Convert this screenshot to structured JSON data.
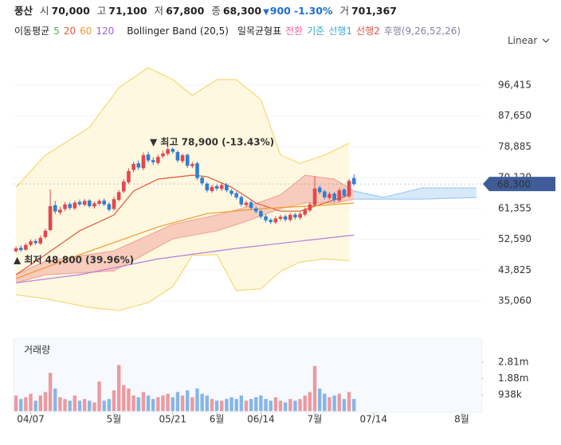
{
  "header": {
    "name": "풍산",
    "fields": [
      {
        "label": "시",
        "value": "70,000"
      },
      {
        "label": "고",
        "value": "71,100"
      },
      {
        "label": "저",
        "value": "67,800"
      },
      {
        "label": "종",
        "value": "68,300"
      }
    ],
    "change": {
      "arrow": "▼",
      "amount": "900",
      "percent": "-1.30%"
    },
    "volume": {
      "label": "거",
      "value": "701,367"
    }
  },
  "legend": {
    "ma_title": "이동평균",
    "ma": [
      {
        "name": "5",
        "color": "#4caf50"
      },
      {
        "name": "20",
        "color": "#e0563b"
      },
      {
        "name": "60",
        "color": "#ef9a2c"
      },
      {
        "name": "120",
        "color": "#a05fd0"
      }
    ],
    "bollinger": "Bollinger Band (20,5)",
    "ichimoku_title": "일목균형표",
    "ichimoku": [
      {
        "name": "전환",
        "color": "#ec6aa0"
      },
      {
        "name": "기준",
        "color": "#2aa8b8"
      },
      {
        "name": "선행1",
        "color": "#3fa7d6"
      },
      {
        "name": "선행2",
        "color": "#e0524a"
      },
      {
        "name": "후행(9,26,52,26)",
        "color": "#8a7fa0"
      }
    ]
  },
  "scale_mode": "Linear",
  "chart_data": {
    "type": "candlestick",
    "up_color": "#e2474e",
    "down_color": "#2f7fd2",
    "xlim": [
      -0.5,
      95
    ],
    "xticks": [
      {
        "value": 3,
        "label": "04/07"
      },
      {
        "value": 20,
        "label": "5월"
      },
      {
        "value": 32,
        "label": "05/21"
      },
      {
        "value": 41,
        "label": "6월"
      },
      {
        "value": 50,
        "label": "06/14"
      },
      {
        "value": 61,
        "label": "7월"
      },
      {
        "value": 73,
        "label": "07/14"
      },
      {
        "value": 91,
        "label": "8월"
      }
    ],
    "ylim": [
      27812,
      103663
    ],
    "yticks": [
      {
        "value": 96415,
        "label": "96,415"
      },
      {
        "value": 87650,
        "label": "87,650"
      },
      {
        "value": 78885,
        "label": "78,885"
      },
      {
        "value": 70120,
        "label": "70,120"
      },
      {
        "value": 61355,
        "label": "61,355"
      },
      {
        "value": 52590,
        "label": "52,590"
      },
      {
        "value": 43825,
        "label": "43,825"
      },
      {
        "value": 35060,
        "label": "35,060"
      }
    ],
    "open": [
      49200,
      50200,
      49600,
      51000,
      52100,
      51400,
      53200,
      55200,
      62300,
      60200,
      61200,
      62600,
      61400,
      63200,
      62400,
      63600,
      61900,
      62700,
      63600,
      62600,
      61200,
      63800,
      66200,
      68800,
      72300,
      74200,
      72800,
      76700,
      75100,
      74300,
      76200,
      76900,
      78300,
      77400,
      74800,
      76600,
      73400,
      74200,
      70100,
      68400,
      66300,
      67700,
      66900,
      68100,
      66400,
      65700,
      64600,
      62300,
      63100,
      61400,
      60600,
      59100,
      58100,
      57400,
      58400,
      59100,
      58100,
      59600,
      58700,
      59600,
      60800,
      62300,
      67300,
      66200,
      64300,
      65600,
      63600,
      66700,
      64800,
      70000
    ],
    "high": [
      50600,
      50900,
      51500,
      52600,
      52700,
      53600,
      55700,
      66800,
      63500,
      61800,
      63200,
      63100,
      63600,
      63900,
      64100,
      64000,
      63300,
      64000,
      64200,
      63100,
      64700,
      66600,
      69700,
      72800,
      74700,
      75000,
      77300,
      77500,
      75900,
      76700,
      77800,
      78900,
      78700,
      77900,
      77000,
      77000,
      74600,
      74700,
      70700,
      68900,
      68100,
      68200,
      68600,
      68600,
      66900,
      66200,
      65100,
      63600,
      63600,
      61900,
      61100,
      59600,
      58600,
      59100,
      59600,
      59600,
      60100,
      60100,
      60400,
      61600,
      63100,
      70500,
      67900,
      66700,
      66100,
      66100,
      67100,
      67200,
      69800,
      71100
    ],
    "low": [
      48800,
      49000,
      49300,
      50500,
      51000,
      51000,
      52800,
      55000,
      59800,
      59500,
      60600,
      60900,
      60900,
      62000,
      61900,
      61500,
      61300,
      62200,
      62000,
      60500,
      60800,
      63300,
      65700,
      68300,
      71600,
      72300,
      72200,
      74400,
      73800,
      73800,
      75600,
      76300,
      76900,
      74400,
      74200,
      72900,
      72800,
      69400,
      67900,
      65900,
      65800,
      66400,
      66300,
      65900,
      64900,
      63900,
      61900,
      61800,
      60900,
      59900,
      58400,
      57400,
      56900,
      56900,
      57800,
      57600,
      57600,
      58200,
      58200,
      59100,
      60300,
      61800,
      65400,
      63900,
      63800,
      63200,
      63100,
      64400,
      64300,
      67800
    ],
    "close": [
      50000,
      49500,
      51000,
      52000,
      51500,
      53000,
      55000,
      62000,
      60500,
      61000,
      62500,
      61500,
      63000,
      62500,
      63500,
      62000,
      62800,
      63500,
      62500,
      61000,
      64000,
      66000,
      69000,
      72000,
      74000,
      73000,
      76500,
      75000,
      74500,
      76000,
      77000,
      78200,
      77500,
      75000,
      76500,
      73500,
      74000,
      70000,
      68500,
      66500,
      67500,
      67000,
      68000,
      66500,
      65500,
      64500,
      62500,
      63000,
      61500,
      60500,
      59000,
      58000,
      57500,
      58500,
      59000,
      58200,
      59500,
      58800,
      59800,
      61000,
      62500,
      67000,
      66000,
      64500,
      65500,
      63800,
      66500,
      65000,
      69200,
      68300
    ],
    "bands": [
      {
        "color": "#f6d873",
        "fill": "#fff5d6",
        "x": [
          0,
          6,
          15,
          21,
          27,
          32,
          36,
          41,
          45,
          50,
          54,
          58,
          63,
          68
        ],
        "upper": [
          67400,
          76500,
          84400,
          95700,
          101400,
          98000,
          93500,
          98000,
          98000,
          92300,
          76500,
          74200,
          76500,
          79900
        ],
        "lower": [
          36800,
          35700,
          33200,
          32300,
          34600,
          39100,
          48000,
          48200,
          38000,
          38500,
          43500,
          46100,
          47000,
          46500
        ]
      },
      {
        "color": "#f0a89c",
        "fill": "#f6bdb1",
        "x": [
          0,
          6,
          20,
          32,
          41,
          46,
          54,
          59,
          65,
          69
        ],
        "upper": [
          42500,
          46400,
          49300,
          56800,
          59500,
          61300,
          65200,
          70800,
          69700,
          66300
        ],
        "lower": [
          40200,
          42500,
          43600,
          52700,
          55000,
          57200,
          61300,
          62900,
          62900,
          64000
        ]
      },
      {
        "color": "#9cc9ee",
        "fill": "#c9e1f5",
        "x": [
          69,
          75,
          83,
          94
        ],
        "upper": [
          66300,
          64500,
          67200,
          67200
        ],
        "lower": [
          64000,
          64000,
          64000,
          64500
        ]
      }
    ],
    "lines": [
      {
        "color": "#e0563b",
        "x": [
          0,
          6,
          13,
          20,
          24,
          29,
          36,
          39,
          44,
          49,
          54,
          58,
          63,
          68
        ],
        "values": [
          42500,
          48200,
          55000,
          59500,
          66300,
          69700,
          70800,
          70400,
          67400,
          62900,
          60600,
          60600,
          62900,
          65200
        ]
      },
      {
        "color": "#ef9a2c",
        "x": [
          0,
          13,
          29,
          39,
          50,
          62,
          69
        ],
        "values": [
          41400,
          48200,
          56100,
          59900,
          61300,
          62200,
          62900
        ]
      },
      {
        "color": "#b77be0",
        "x": [
          0,
          13,
          29,
          45,
          69
        ],
        "values": [
          40200,
          42500,
          47000,
          50000,
          53800
        ]
      }
    ],
    "annotations": [
      {
        "text": "▼ 최고 78,900 (-13.43%)"
      },
      {
        "text": "▲ 최저 48,800 (39.96%)"
      }
    ],
    "last_price": {
      "value": 68300,
      "label": "68,300",
      "color": "#3e5c98"
    },
    "volume": {
      "title": "거래량",
      "values": [
        900000,
        700000,
        800000,
        1000000,
        600000,
        900000,
        1100000,
        2200000,
        1300000,
        800000,
        700000,
        600000,
        900000,
        600000,
        700000,
        600000,
        500000,
        1700000,
        600000,
        700000,
        1200000,
        2650000,
        1500000,
        1300000,
        900000,
        800000,
        1100000,
        900000,
        700000,
        800000,
        900000,
        1000000,
        800000,
        1100000,
        900000,
        1200000,
        800000,
        1300000,
        1000000,
        900000,
        700000,
        600000,
        600000,
        700000,
        800000,
        700000,
        900000,
        600000,
        700000,
        800000,
        900000,
        700000,
        600000,
        800000,
        600000,
        500000,
        700000,
        600000,
        700000,
        900000,
        1100000,
        2600000,
        1300000,
        1000000,
        800000,
        900000,
        1000000,
        700000,
        1100000,
        701367
      ],
      "ylim": [
        0,
        4050000
      ],
      "yticks": [
        {
          "value": 2810000,
          "label": "2.81m"
        },
        {
          "value": 1880000,
          "label": "1.88m"
        },
        {
          "value": 938000,
          "label": "938k"
        }
      ],
      "up_color": "#eb9aa0",
      "down_color": "#86b6e4"
    }
  }
}
